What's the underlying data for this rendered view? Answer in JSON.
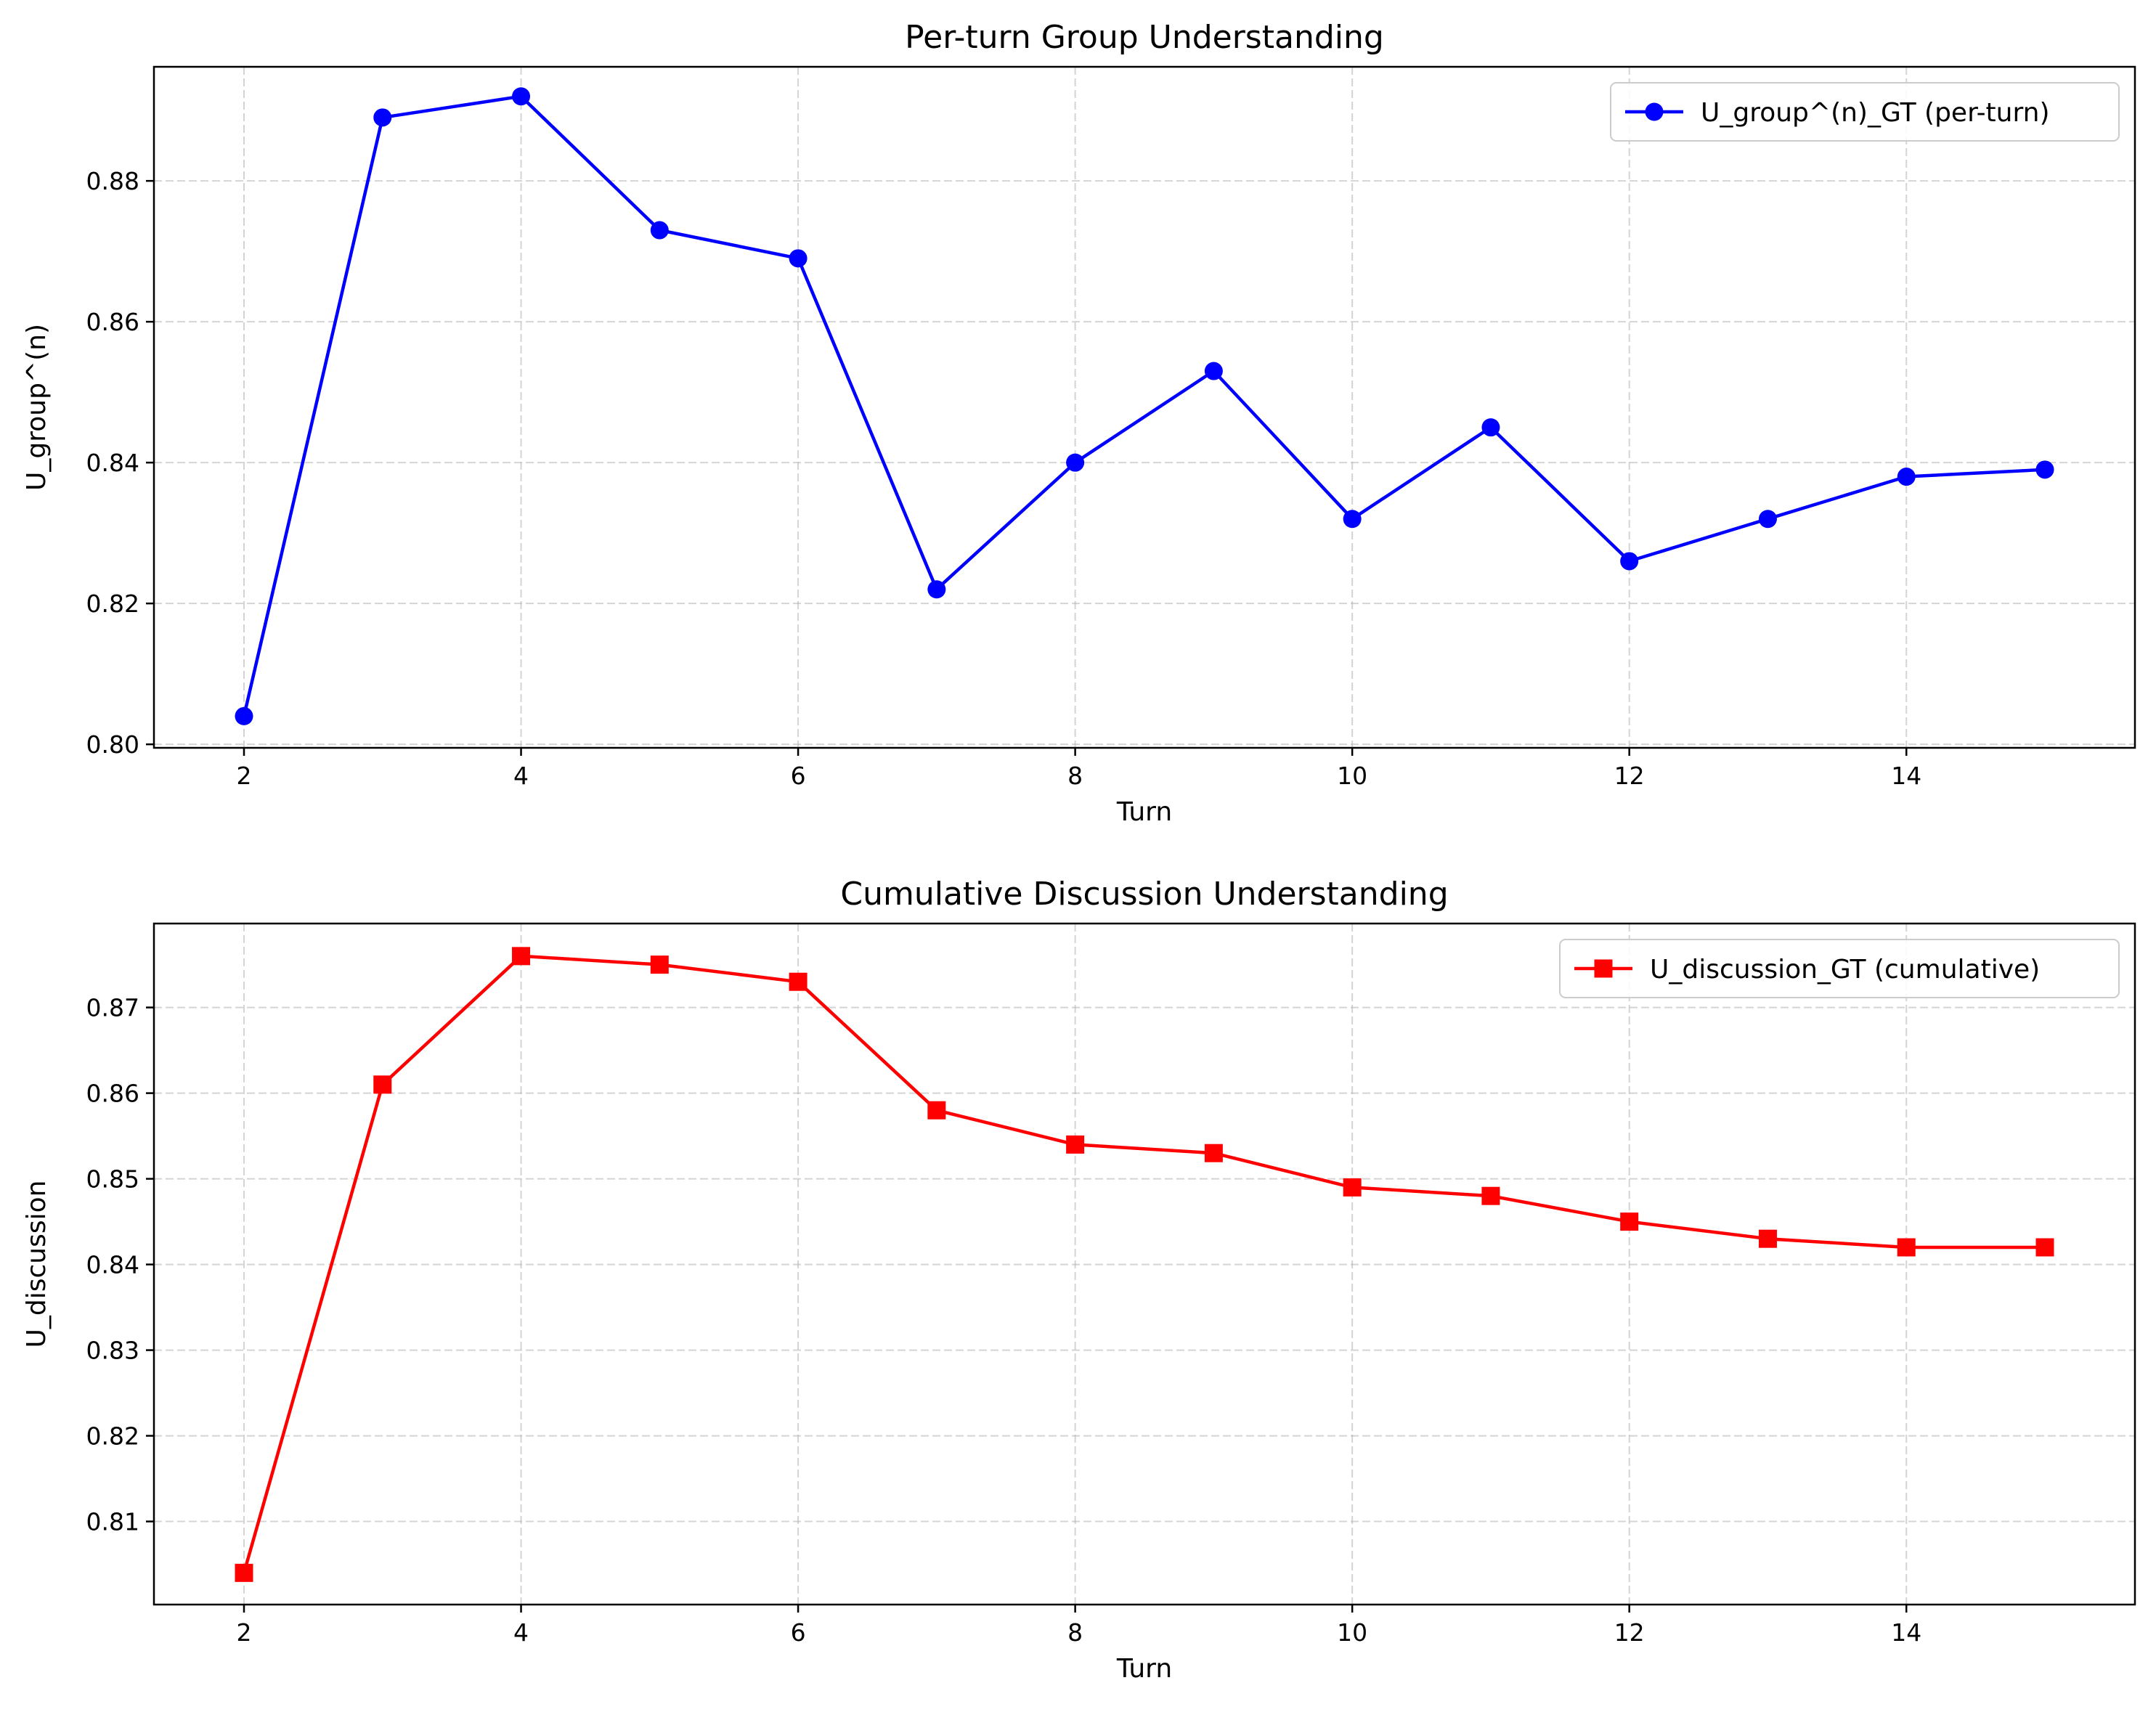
{
  "chart_data": [
    {
      "type": "line",
      "title": "Per-turn Group Understanding",
      "xlabel": "Turn",
      "ylabel": "U_group^(n)",
      "xlim": [
        1.35,
        15.65
      ],
      "ylim": [
        0.7995,
        0.8962
      ],
      "xticks": [
        2,
        4,
        6,
        8,
        10,
        12,
        14
      ],
      "yticks": [
        0.8,
        0.82,
        0.84,
        0.86,
        0.88
      ],
      "ytick_labels": [
        "0.80",
        "0.82",
        "0.84",
        "0.86",
        "0.88"
      ],
      "grid": true,
      "legend_position": "top-right",
      "series": [
        {
          "name": "U_group^(n)_GT (per-turn)",
          "color": "#0000ff",
          "marker": "circle",
          "x": [
            2,
            3,
            4,
            5,
            6,
            7,
            8,
            9,
            10,
            11,
            12,
            13,
            14,
            15
          ],
          "y": [
            0.804,
            0.889,
            0.892,
            0.873,
            0.869,
            0.822,
            0.84,
            0.853,
            0.832,
            0.845,
            0.826,
            0.832,
            0.838,
            0.839
          ]
        }
      ]
    },
    {
      "type": "line",
      "title": "Cumulative Discussion Understanding",
      "xlabel": "Turn",
      "ylabel": "U_discussion",
      "xlim": [
        1.35,
        15.65
      ],
      "ylim": [
        0.8003,
        0.8798
      ],
      "xticks": [
        2,
        4,
        6,
        8,
        10,
        12,
        14
      ],
      "yticks": [
        0.81,
        0.82,
        0.83,
        0.84,
        0.85,
        0.86,
        0.87
      ],
      "ytick_labels": [
        "0.81",
        "0.82",
        "0.83",
        "0.84",
        "0.85",
        "0.86",
        "0.87"
      ],
      "grid": true,
      "legend_position": "top-right",
      "series": [
        {
          "name": "U_discussion_GT (cumulative)",
          "color": "#ff0000",
          "marker": "square",
          "x": [
            2,
            3,
            4,
            5,
            6,
            7,
            8,
            9,
            10,
            11,
            12,
            13,
            14,
            15
          ],
          "y": [
            0.804,
            0.861,
            0.876,
            0.875,
            0.873,
            0.858,
            0.854,
            0.853,
            0.849,
            0.848,
            0.845,
            0.843,
            0.842,
            0.842
          ]
        }
      ]
    }
  ]
}
